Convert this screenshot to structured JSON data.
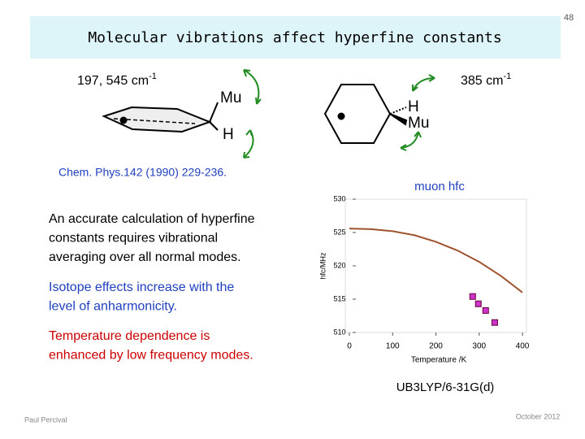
{
  "page_number": "48",
  "title": "Molecular vibrations affect hyperfine constants",
  "left_freq": {
    "text": "197, 545 cm",
    "sup": "-1"
  },
  "right_freq": {
    "text": "385 cm",
    "sup": "-1"
  },
  "left_molecule": {
    "top": "Mu",
    "bottom": "H"
  },
  "right_molecule": {
    "top": "H",
    "bottom": "Mu"
  },
  "reference": "Chem. Phys.142 (1990) 229-236.",
  "points": [
    {
      "lines": [
        "An accurate calculation of hyperfine",
        "constants requires vibrational",
        "averaging over all normal modes."
      ],
      "color": "#000000"
    },
    {
      "lines": [
        "Isotope effects increase with the",
        "level of anharmonicity."
      ],
      "color": "#1f3fbf"
    },
    {
      "lines": [
        "Temperature dependence is",
        "enhanced by low frequency modes."
      ],
      "color": "#cc0000"
    }
  ],
  "method": "UB3LYP/6-31G(d)",
  "author": "Paul Percival",
  "date": "October 2012",
  "chart_data": {
    "type": "line",
    "title": "muon hfc",
    "x_label": "Temperature /K",
    "y_label": "hfc/MHz",
    "xlim": [
      0,
      400
    ],
    "xticks": [
      0,
      100,
      200,
      300,
      400
    ],
    "ylim": [
      510,
      530
    ],
    "yticks": [
      510,
      515,
      520,
      525,
      530
    ],
    "series": [
      {
        "color": "#a0522d",
        "x": [
          0,
          50,
          100,
          150,
          200,
          250,
          300,
          350,
          400
        ],
        "values": [
          525.6,
          525.5,
          525.2,
          524.6,
          523.6,
          522.3,
          520.6,
          518.5,
          516.0
        ]
      },
      {
        "type": "scatter",
        "color": "#cc33cc",
        "x": [
          285,
          298,
          315,
          336
        ],
        "values": [
          515.4,
          514.3,
          513.3,
          511.5
        ]
      }
    ]
  }
}
